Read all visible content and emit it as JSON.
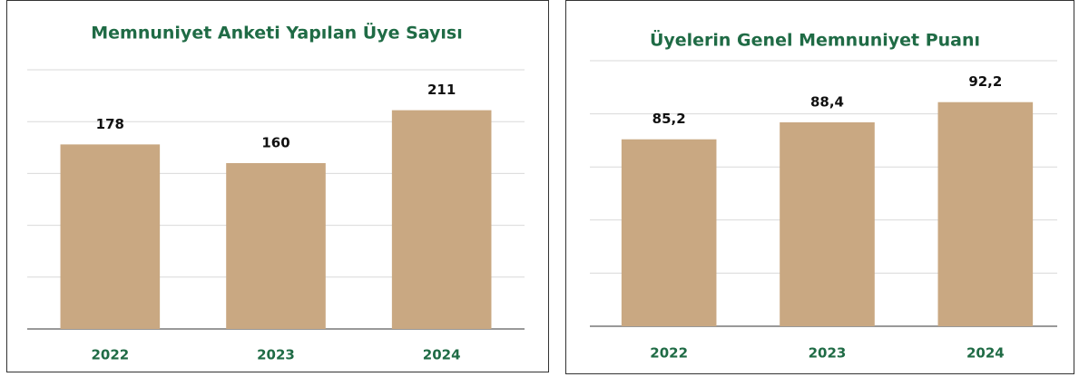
{
  "chart_data": [
    {
      "type": "bar",
      "title": "Memnuniyet Anketi Yapılan Üye Sayısı",
      "categories": [
        "2022",
        "2023",
        "2024"
      ],
      "values": [
        178,
        160,
        211
      ],
      "color": "#c9a882",
      "ylim": [
        0,
        250
      ],
      "yticks": [
        0,
        50,
        100,
        150,
        200,
        250
      ],
      "grid": true
    },
    {
      "type": "bar",
      "title": "Üyelerin Genel Memnuniyet Puanı",
      "categories": [
        "2022",
        "2023",
        "2024"
      ],
      "values": [
        85.2,
        88.4,
        92.2
      ],
      "value_labels": [
        "85,2",
        "88,4",
        "92,2"
      ],
      "color": "#c9a882",
      "ylim": [
        50,
        100
      ],
      "yticks": [
        50,
        60,
        70,
        80,
        90,
        100
      ],
      "grid": true
    }
  ]
}
